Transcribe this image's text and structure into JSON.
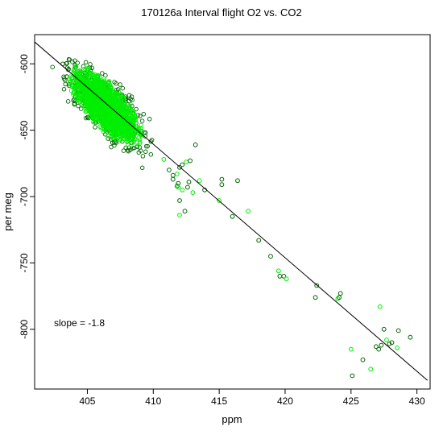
{
  "chart_data": {
    "type": "scatter",
    "title": "170126a   Interval flight O2 vs. CO2",
    "xlabel": "ppm",
    "ylabel": "per meg",
    "xlim": [
      401,
      431
    ],
    "ylim": [
      -845,
      -578
    ],
    "x_ticks": [
      405,
      410,
      415,
      420,
      425,
      430
    ],
    "y_ticks": [
      -600,
      -650,
      -700,
      -750,
      -800
    ],
    "grid": false,
    "colors": {
      "bright": "#00ee00",
      "dark": "#006400",
      "line": "#000000"
    },
    "annotation": "slope =  -1.8",
    "fit_line": {
      "slope": -1.8,
      "x0": 401,
      "y0": -583.5,
      "x1": 430.8,
      "y1": -838.5
    },
    "dense_cluster": {
      "center": [
        406.4,
        -632
      ],
      "spread_x": 1.6,
      "spread_y": 17,
      "x_range": [
        402,
        411
      ],
      "y_range": [
        -690,
        -590
      ]
    },
    "outlier_points": [
      [
        410.8,
        -672
      ],
      [
        411.2,
        -680
      ],
      [
        411.5,
        -684
      ],
      [
        411.8,
        -683
      ],
      [
        412.0,
        -678
      ],
      [
        412.2,
        -676
      ],
      [
        412.5,
        -674
      ],
      [
        412.8,
        -673
      ],
      [
        413.2,
        -661
      ],
      [
        413.5,
        -688
      ],
      [
        411.5,
        -687
      ],
      [
        411.9,
        -690
      ],
      [
        412.2,
        -695
      ],
      [
        412.0,
        -703
      ],
      [
        411.8,
        -692
      ],
      [
        411.9,
        -693
      ],
      [
        412.6,
        -693
      ],
      [
        412.7,
        -689
      ],
      [
        413.0,
        -697
      ],
      [
        413.9,
        -695
      ],
      [
        412.4,
        -711
      ],
      [
        412.0,
        -714
      ],
      [
        415.2,
        -687
      ],
      [
        415.2,
        -691
      ],
      [
        415.0,
        -703
      ],
      [
        416.0,
        -715
      ],
      [
        416.4,
        -688
      ],
      [
        417.2,
        -711
      ],
      [
        418.0,
        -733
      ],
      [
        418.9,
        -745
      ],
      [
        419.5,
        -756
      ],
      [
        419.6,
        -760
      ],
      [
        419.9,
        -760
      ],
      [
        420.1,
        -762
      ],
      [
        422.3,
        -776
      ],
      [
        422.4,
        -767
      ],
      [
        424.0,
        -777
      ],
      [
        424.1,
        -776
      ],
      [
        424.2,
        -773
      ],
      [
        425.0,
        -815
      ],
      [
        425.1,
        -835
      ],
      [
        425.9,
        -823
      ],
      [
        426.5,
        -830
      ],
      [
        426.9,
        -813
      ],
      [
        427.1,
        -815
      ],
      [
        427.2,
        -783
      ],
      [
        427.3,
        -812
      ],
      [
        427.5,
        -800
      ],
      [
        427.7,
        -808
      ],
      [
        427.9,
        -811
      ],
      [
        428.1,
        -810
      ],
      [
        428.5,
        -814
      ],
      [
        428.6,
        -801
      ],
      [
        429.5,
        -806
      ]
    ]
  }
}
